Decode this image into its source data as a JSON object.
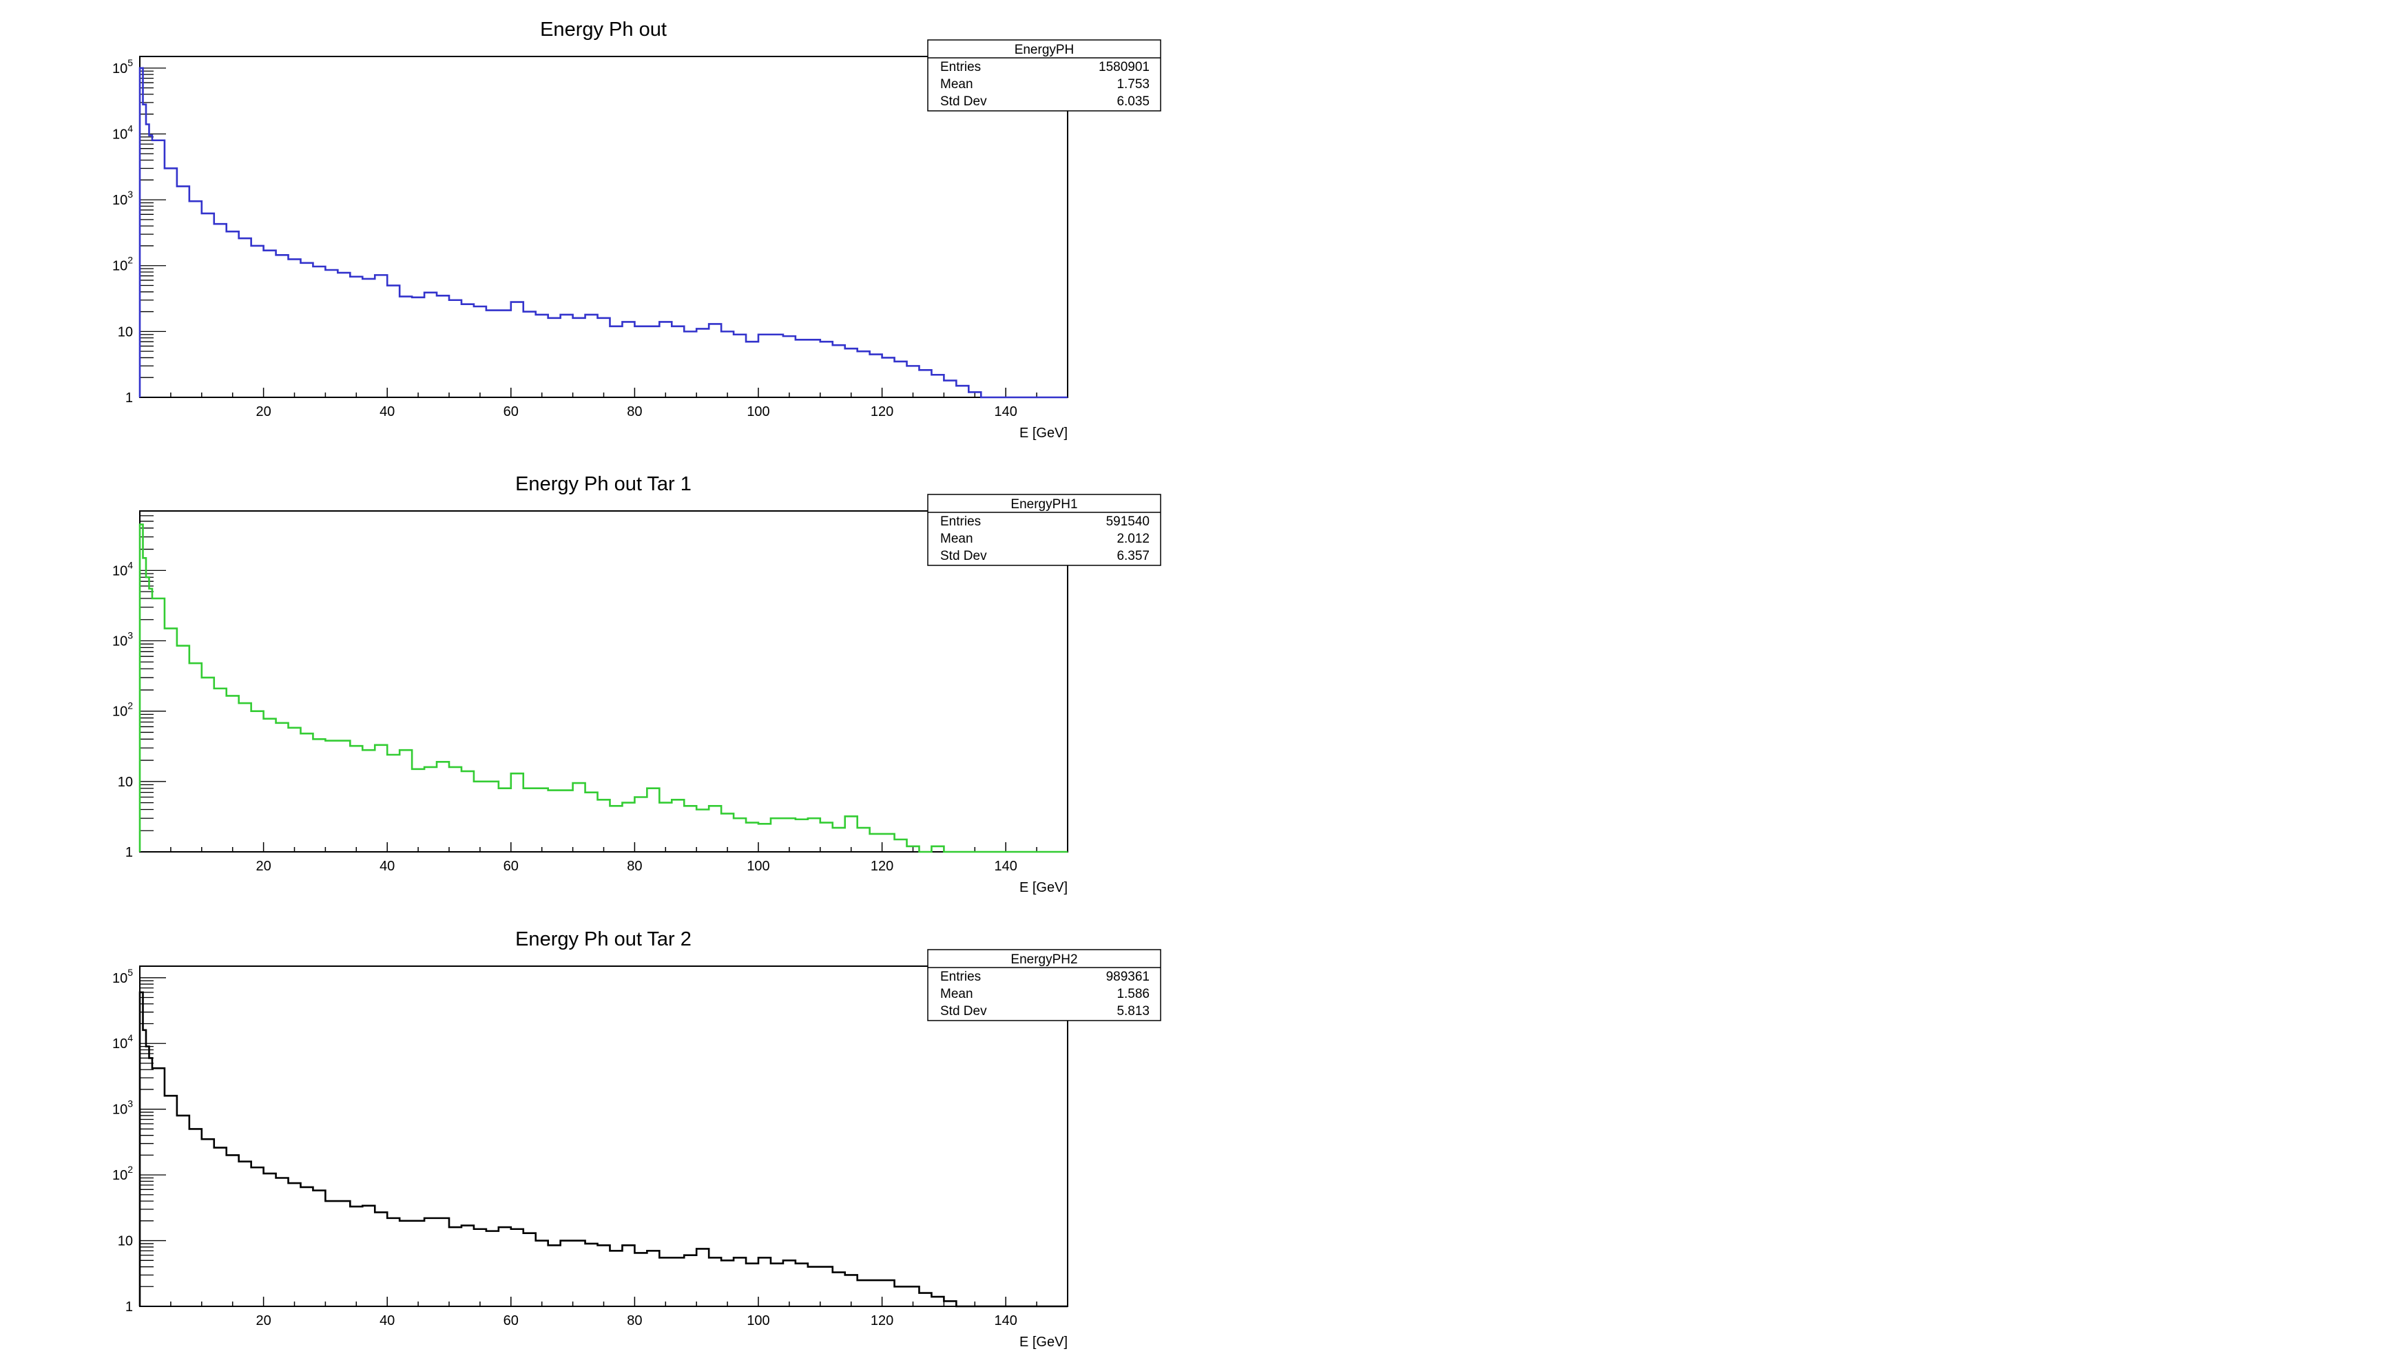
{
  "charts": [
    {
      "title": "Energy Ph out",
      "stats": {
        "name": "EnergyPH",
        "rows": [
          [
            "Entries",
            "1580901"
          ],
          [
            "Mean",
            "1.753"
          ],
          [
            "Std Dev",
            "6.035"
          ]
        ]
      },
      "color": "#3333cc"
    },
    {
      "title": "Energy Ph out Tar 1",
      "stats": {
        "name": "EnergyPH1",
        "rows": [
          [
            "Entries",
            "591540"
          ],
          [
            "Mean",
            "2.012"
          ],
          [
            "Std Dev",
            "6.357"
          ]
        ]
      },
      "color": "#33cc33"
    },
    {
      "title": "Energy Ph out Tar 2",
      "stats": {
        "name": "EnergyPH2",
        "rows": [
          [
            "Entries",
            "989361"
          ],
          [
            "Mean",
            "1.586"
          ],
          [
            "Std Dev",
            "5.813"
          ]
        ]
      },
      "color": "#000000"
    }
  ],
  "chart_data": [
    {
      "type": "histogram",
      "title": "Energy Ph out",
      "xlabel": "E [GeV]",
      "ylabel": "",
      "xlim": [
        0,
        150
      ],
      "ylim": [
        1,
        150000
      ],
      "yscale": "log",
      "x_ticks": [
        "20",
        "40",
        "60",
        "80",
        "100",
        "120",
        "140"
      ],
      "y_ticks": [
        "1",
        "10",
        "10^2",
        "10^3",
        "10^4",
        "10^5"
      ],
      "bins": [
        [
          0.0,
          0.5,
          100000
        ],
        [
          0.5,
          1.0,
          28000
        ],
        [
          1.0,
          1.5,
          14000
        ],
        [
          1.5,
          2.0,
          9500
        ],
        [
          2.0,
          4.0,
          8000
        ],
        [
          4.0,
          6.0,
          3000
        ],
        [
          6.0,
          8.0,
          1600
        ],
        [
          8.0,
          10.0,
          950
        ],
        [
          10,
          12,
          620
        ],
        [
          12,
          14,
          430
        ],
        [
          14,
          16,
          330
        ],
        [
          16,
          18,
          260
        ],
        [
          18,
          20,
          200
        ],
        [
          20,
          22,
          170
        ],
        [
          22,
          24,
          145
        ],
        [
          24,
          26,
          125
        ],
        [
          26,
          28,
          110
        ],
        [
          28,
          30,
          97
        ],
        [
          30,
          32,
          86
        ],
        [
          32,
          34,
          78
        ],
        [
          34,
          36,
          68
        ],
        [
          36,
          38,
          63
        ],
        [
          38,
          40,
          72
        ],
        [
          40,
          42,
          50
        ],
        [
          42,
          44,
          34
        ],
        [
          44,
          46,
          33
        ],
        [
          46,
          48,
          39
        ],
        [
          48,
          50,
          35
        ],
        [
          50,
          52,
          30
        ],
        [
          52,
          54,
          26
        ],
        [
          54,
          56,
          24
        ],
        [
          56,
          58,
          21
        ],
        [
          58,
          60,
          21
        ],
        [
          60,
          62,
          28
        ],
        [
          62,
          64,
          20
        ],
        [
          64,
          66,
          18
        ],
        [
          66,
          68,
          16
        ],
        [
          68,
          70,
          18
        ],
        [
          70,
          72,
          16
        ],
        [
          72,
          74,
          18
        ],
        [
          74,
          76,
          16
        ],
        [
          76,
          78,
          12
        ],
        [
          78,
          80,
          14
        ],
        [
          80,
          82,
          12
        ],
        [
          82,
          84,
          12
        ],
        [
          84,
          86,
          14
        ],
        [
          86,
          88,
          12
        ],
        [
          88,
          90,
          10
        ],
        [
          90,
          92,
          11
        ],
        [
          92,
          94,
          13
        ],
        [
          94,
          96,
          10
        ],
        [
          96,
          98,
          9
        ],
        [
          98,
          100,
          7
        ],
        [
          100,
          102,
          9
        ],
        [
          102,
          104,
          9
        ],
        [
          104,
          106,
          8.5
        ],
        [
          106,
          108,
          7.5
        ],
        [
          108,
          110,
          7.5
        ],
        [
          110,
          112,
          7
        ],
        [
          112,
          114,
          6.2
        ],
        [
          114,
          116,
          5.5
        ],
        [
          116,
          118,
          5
        ],
        [
          118,
          120,
          4.5
        ],
        [
          120,
          122,
          4
        ],
        [
          122,
          124,
          3.5
        ],
        [
          124,
          126,
          3
        ],
        [
          126,
          128,
          2.6
        ],
        [
          128,
          130,
          2.2
        ],
        [
          130,
          132,
          1.8
        ],
        [
          132,
          134,
          1.5
        ],
        [
          134,
          136,
          1.2
        ],
        [
          136,
          138,
          1.0
        ]
      ]
    },
    {
      "type": "histogram",
      "title": "Energy Ph out Tar 1",
      "xlabel": "E [GeV]",
      "ylabel": "",
      "xlim": [
        0,
        150
      ],
      "ylim": [
        1,
        70000
      ],
      "yscale": "log",
      "x_ticks": [
        "20",
        "40",
        "60",
        "80",
        "100",
        "120",
        "140"
      ],
      "y_ticks": [
        "1",
        "10",
        "10^2",
        "10^3",
        "10^4"
      ],
      "bins": [
        [
          0.0,
          0.5,
          45000
        ],
        [
          0.5,
          1.0,
          15000
        ],
        [
          1.0,
          1.5,
          8000
        ],
        [
          1.5,
          2.0,
          5500
        ],
        [
          2.0,
          4.0,
          4000
        ],
        [
          4.0,
          6.0,
          1500
        ],
        [
          6.0,
          8.0,
          850
        ],
        [
          8.0,
          10.0,
          480
        ],
        [
          10,
          12,
          300
        ],
        [
          12,
          14,
          210
        ],
        [
          14,
          16,
          165
        ],
        [
          16,
          18,
          130
        ],
        [
          18,
          20,
          100
        ],
        [
          20,
          22,
          78
        ],
        [
          22,
          24,
          68
        ],
        [
          24,
          26,
          58
        ],
        [
          26,
          28,
          48
        ],
        [
          28,
          30,
          40
        ],
        [
          30,
          32,
          38
        ],
        [
          32,
          34,
          38
        ],
        [
          34,
          36,
          32
        ],
        [
          36,
          38,
          28
        ],
        [
          38,
          40,
          33
        ],
        [
          40,
          42,
          24
        ],
        [
          42,
          44,
          28
        ],
        [
          44,
          46,
          15
        ],
        [
          46,
          48,
          16
        ],
        [
          48,
          50,
          19
        ],
        [
          50,
          52,
          16
        ],
        [
          52,
          54,
          14
        ],
        [
          54,
          56,
          10
        ],
        [
          56,
          58,
          10
        ],
        [
          58,
          60,
          8
        ],
        [
          60,
          62,
          13
        ],
        [
          62,
          64,
          8
        ],
        [
          64,
          66,
          8
        ],
        [
          66,
          68,
          7.5
        ],
        [
          68,
          70,
          7.5
        ],
        [
          70,
          72,
          9.5
        ],
        [
          72,
          74,
          7
        ],
        [
          74,
          76,
          5.5
        ],
        [
          76,
          78,
          4.5
        ],
        [
          78,
          80,
          5
        ],
        [
          80,
          82,
          6
        ],
        [
          82,
          84,
          8
        ],
        [
          84,
          86,
          5
        ],
        [
          86,
          88,
          5.5
        ],
        [
          88,
          90,
          4.5
        ],
        [
          90,
          92,
          4
        ],
        [
          92,
          94,
          4.5
        ],
        [
          94,
          96,
          3.5
        ],
        [
          96,
          98,
          3
        ],
        [
          98,
          100,
          2.6
        ],
        [
          100,
          102,
          2.5
        ],
        [
          102,
          104,
          3
        ],
        [
          104,
          106,
          3
        ],
        [
          106,
          108,
          2.9
        ],
        [
          108,
          110,
          3
        ],
        [
          110,
          112,
          2.6
        ],
        [
          112,
          114,
          2.2
        ],
        [
          114,
          116,
          3.2
        ],
        [
          116,
          118,
          2.2
        ],
        [
          118,
          120,
          1.8
        ],
        [
          120,
          122,
          1.8
        ],
        [
          122,
          124,
          1.5
        ],
        [
          124,
          126,
          1.2
        ],
        [
          126,
          128,
          1.0
        ],
        [
          128,
          130,
          1.2
        ],
        [
          130,
          132,
          1.0
        ]
      ]
    },
    {
      "type": "histogram",
      "title": "Energy Ph out Tar 2",
      "xlabel": "E [GeV]",
      "ylabel": "",
      "xlim": [
        0,
        150
      ],
      "ylim": [
        1,
        150000
      ],
      "yscale": "log",
      "x_ticks": [
        "20",
        "40",
        "60",
        "80",
        "100",
        "120",
        "140"
      ],
      "y_ticks": [
        "1",
        "10",
        "10^2",
        "10^3",
        "10^4",
        "10^5"
      ],
      "bins": [
        [
          0.0,
          0.5,
          60000
        ],
        [
          0.5,
          1.0,
          16000
        ],
        [
          1.0,
          1.5,
          9000
        ],
        [
          1.5,
          2.0,
          6000
        ],
        [
          2.0,
          4.0,
          4200
        ],
        [
          4.0,
          6.0,
          1600
        ],
        [
          6.0,
          8.0,
          800
        ],
        [
          8.0,
          10.0,
          500
        ],
        [
          10,
          12,
          350
        ],
        [
          12,
          14,
          260
        ],
        [
          14,
          16,
          200
        ],
        [
          16,
          18,
          160
        ],
        [
          18,
          20,
          130
        ],
        [
          20,
          22,
          105
        ],
        [
          22,
          24,
          90
        ],
        [
          24,
          26,
          75
        ],
        [
          26,
          28,
          65
        ],
        [
          28,
          30,
          58
        ],
        [
          30,
          32,
          40
        ],
        [
          32,
          34,
          40
        ],
        [
          34,
          36,
          33
        ],
        [
          36,
          38,
          34
        ],
        [
          38,
          40,
          27
        ],
        [
          40,
          42,
          22
        ],
        [
          42,
          44,
          20
        ],
        [
          44,
          46,
          20
        ],
        [
          46,
          48,
          22
        ],
        [
          48,
          50,
          22
        ],
        [
          50,
          52,
          16
        ],
        [
          52,
          54,
          17
        ],
        [
          54,
          56,
          15
        ],
        [
          56,
          58,
          14
        ],
        [
          58,
          60,
          16
        ],
        [
          60,
          62,
          15
        ],
        [
          62,
          64,
          13
        ],
        [
          64,
          66,
          10
        ],
        [
          66,
          68,
          8.5
        ],
        [
          68,
          70,
          10
        ],
        [
          70,
          72,
          10
        ],
        [
          72,
          74,
          9
        ],
        [
          74,
          76,
          8.5
        ],
        [
          76,
          78,
          7
        ],
        [
          78,
          80,
          8.5
        ],
        [
          80,
          82,
          6.5
        ],
        [
          82,
          84,
          7
        ],
        [
          84,
          86,
          5.5
        ],
        [
          86,
          88,
          5.5
        ],
        [
          88,
          90,
          6
        ],
        [
          90,
          92,
          7.5
        ],
        [
          92,
          94,
          5.5
        ],
        [
          94,
          96,
          5
        ],
        [
          96,
          98,
          5.5
        ],
        [
          98,
          100,
          4.5
        ],
        [
          100,
          102,
          5.5
        ],
        [
          102,
          104,
          4.5
        ],
        [
          104,
          106,
          5
        ],
        [
          106,
          108,
          4.5
        ],
        [
          108,
          110,
          4
        ],
        [
          110,
          112,
          4
        ],
        [
          112,
          114,
          3.3
        ],
        [
          114,
          116,
          3
        ],
        [
          116,
          118,
          2.5
        ],
        [
          118,
          120,
          2.5
        ],
        [
          120,
          122,
          2.5
        ],
        [
          122,
          124,
          2
        ],
        [
          124,
          126,
          2
        ],
        [
          126,
          128,
          1.6
        ],
        [
          128,
          130,
          1.4
        ],
        [
          130,
          132,
          1.2
        ],
        [
          132,
          134,
          1.0
        ]
      ]
    }
  ]
}
